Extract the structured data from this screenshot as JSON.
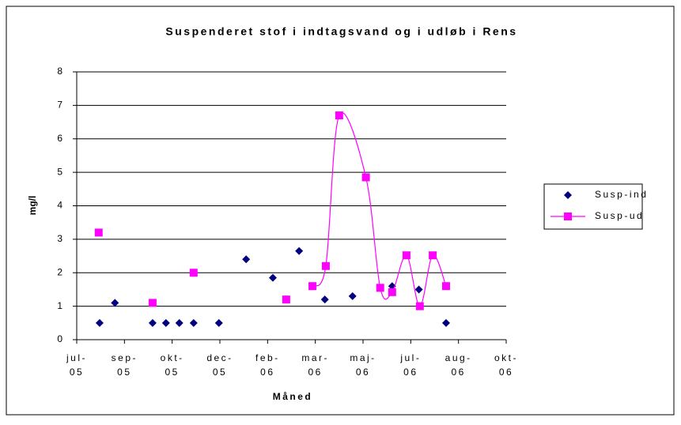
{
  "chart_data": {
    "type": "scatter",
    "title": "Suspenderet stof i indtagsvand og i udløb i Rens",
    "x_label": "Måned",
    "y_label": "mg/l",
    "xlim": [
      0,
      9
    ],
    "xticks": [
      {
        "value": 0,
        "label": "jul-05"
      },
      {
        "value": 1,
        "label": "sep-05"
      },
      {
        "value": 2,
        "label": "okt-05"
      },
      {
        "value": 3,
        "label": "dec-05"
      },
      {
        "value": 4,
        "label": "feb-06"
      },
      {
        "value": 5,
        "label": "mar-06"
      },
      {
        "value": 6,
        "label": "maj-06"
      },
      {
        "value": 7,
        "label": "jul-06"
      },
      {
        "value": 8,
        "label": "aug-06"
      },
      {
        "value": 9,
        "label": "okt-06"
      }
    ],
    "ylim": [
      0,
      8
    ],
    "yticks": [
      0,
      1,
      2,
      3,
      4,
      5,
      6,
      7,
      8
    ],
    "grid": true,
    "series": [
      {
        "name": "Susp-ind",
        "color": "#000080",
        "marker": "diamond",
        "line": false,
        "x": [
          0.48,
          0.8,
          1.59,
          1.87,
          2.15,
          2.45,
          2.98,
          3.55,
          4.11,
          4.66,
          5.2,
          5.78,
          6.61,
          7.17,
          7.74
        ],
        "values": [
          0.5,
          1.1,
          0.5,
          0.5,
          0.5,
          0.5,
          0.5,
          2.4,
          1.85,
          2.65,
          1.2,
          1.3,
          1.6,
          1.5,
          0.5
        ]
      },
      {
        "name": "Susp-ud",
        "color": "#ff00ff",
        "marker": "square",
        "line": true,
        "x": [
          0.46,
          null,
          1.59,
          null,
          2.45,
          null,
          4.39,
          null,
          4.94,
          5.22,
          5.5,
          6.06,
          6.36,
          6.61,
          6.91,
          7.19,
          7.46,
          7.74
        ],
        "values": [
          3.2,
          null,
          1.1,
          null,
          2.0,
          null,
          1.2,
          null,
          1.6,
          2.2,
          6.7,
          4.85,
          1.55,
          1.42,
          2.52,
          1.0,
          2.52,
          1.6
        ]
      }
    ]
  }
}
